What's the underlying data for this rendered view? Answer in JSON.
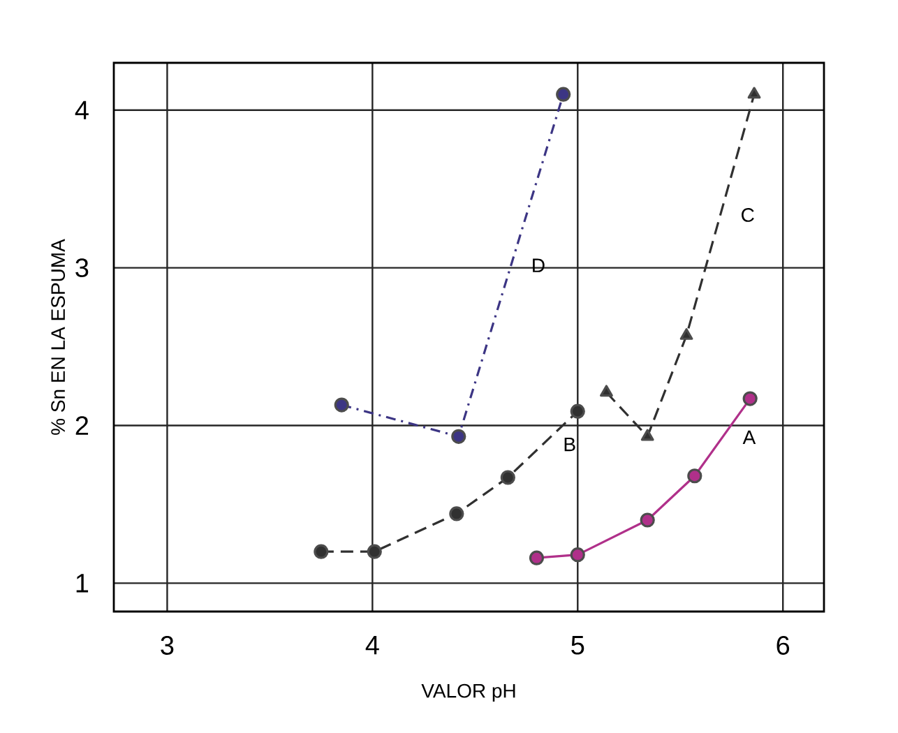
{
  "chart_data": {
    "type": "line",
    "xlabel": "VALOR  pH",
    "ylabel": "% Sn EN LA ESPUMA",
    "xlim": [
      2.74,
      6.2
    ],
    "ylim": [
      0.82,
      4.3
    ],
    "xticks": [
      3,
      4,
      5,
      6
    ],
    "yticks": [
      1,
      2,
      3,
      4
    ],
    "grid": true,
    "series": [
      {
        "name": "A",
        "color": "#b0308a",
        "marker": "circle",
        "line_style": "solid",
        "x": [
          4.8,
          5.0,
          5.34,
          5.57,
          5.84
        ],
        "values": [
          1.16,
          1.18,
          1.4,
          1.68,
          2.17
        ]
      },
      {
        "name": "B",
        "color": "#303030",
        "marker": "circle",
        "line_style": "dashed",
        "x": [
          3.75,
          4.01,
          4.41,
          4.66,
          5.0
        ],
        "values": [
          1.2,
          1.2,
          1.44,
          1.67,
          2.09
        ]
      },
      {
        "name": "C",
        "color": "#303030",
        "marker": "triangle",
        "line_style": "dashed",
        "x": [
          5.14,
          5.34,
          5.53,
          5.86
        ],
        "values": [
          2.21,
          1.93,
          2.57,
          4.1
        ]
      },
      {
        "name": "D",
        "color": "#3c3584",
        "marker": "circle",
        "line_style": "dashdot",
        "x": [
          3.85,
          4.42,
          4.93
        ],
        "values": [
          2.13,
          1.93,
          4.1
        ]
      }
    ]
  }
}
